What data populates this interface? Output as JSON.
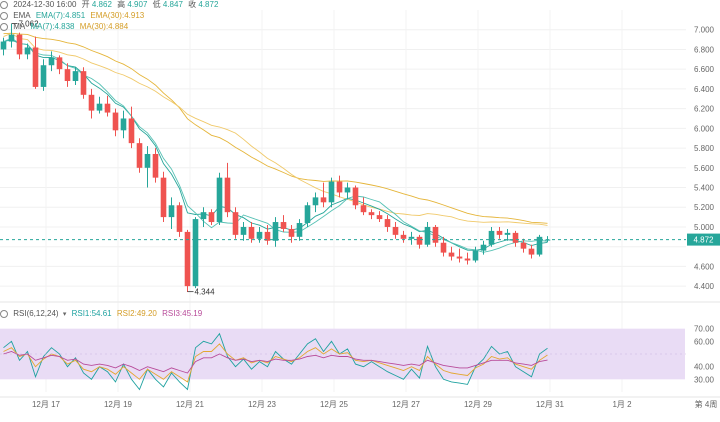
{
  "header": {
    "datetime": "2024-12-30 16:00",
    "open_label": "开",
    "open": "4.862",
    "high_label": "高",
    "high": "4.907",
    "low_label": "低",
    "low": "4.847",
    "close_label": "收",
    "close": "4.872"
  },
  "ema_legend": {
    "name": "EMA",
    "ema7": "EMA(7):4.851",
    "ema30": "EMA(30):4.913",
    "ema7_color": "#26a69a",
    "ema30_color": "#e5b53a"
  },
  "ma_legend": {
    "name": "MA",
    "ma7": "MA(7):4.838",
    "ma30": "MA(30):4.884",
    "ma7_color": "#26a69a",
    "ma30_color": "#e5b53a"
  },
  "rsi_legend": {
    "name": "RSI(6,12,24)",
    "rsi1": "RSI1:54.61",
    "rsi2": "RSI2:49.20",
    "rsi3": "RSI3:45.19",
    "rsi1_color": "#1fa2a0",
    "rsi2_color": "#e3a72f",
    "rsi3_color": "#b84b9a"
  },
  "annotations": {
    "high_mark": "7.062",
    "low_mark": "4.344",
    "last_price": "4.872"
  },
  "colors": {
    "up": "#26a69a",
    "down": "#ef5350",
    "rsi_band": "#e9dcf5"
  },
  "chart_data": [
    {
      "type": "candlestick",
      "price_axis": [
        "7.000",
        "6.800",
        "6.600",
        "6.400",
        "6.200",
        "6.000",
        "5.800",
        "5.600",
        "5.400",
        "5.200",
        "5.000",
        "4.800",
        "4.600",
        "4.400"
      ],
      "x_labels": [
        "12月 17",
        "12月 19",
        "12月 21",
        "12月 23",
        "12月 25",
        "12月 27",
        "12月 29",
        "12月 31",
        "1月 2",
        "第 4周"
      ],
      "ylim": [
        4.3,
        7.2
      ],
      "candles": [
        [
          6.8,
          6.92,
          6.74,
          6.88
        ],
        [
          6.88,
          7.06,
          6.82,
          6.95
        ],
        [
          6.95,
          6.97,
          6.7,
          6.75
        ],
        [
          6.75,
          6.86,
          6.7,
          6.82
        ],
        [
          6.82,
          6.93,
          6.4,
          6.42
        ],
        [
          6.42,
          6.7,
          6.38,
          6.64
        ],
        [
          6.64,
          6.78,
          6.58,
          6.72
        ],
        [
          6.72,
          6.74,
          6.55,
          6.6
        ],
        [
          6.6,
          6.66,
          6.42,
          6.48
        ],
        [
          6.48,
          6.62,
          6.44,
          6.58
        ],
        [
          6.58,
          6.62,
          6.3,
          6.34
        ],
        [
          6.34,
          6.4,
          6.1,
          6.18
        ],
        [
          6.18,
          6.32,
          6.15,
          6.25
        ],
        [
          6.25,
          6.33,
          6.12,
          6.16
        ],
        [
          6.16,
          6.2,
          5.92,
          5.98
        ],
        [
          5.98,
          6.18,
          5.9,
          6.1
        ],
        [
          6.1,
          6.22,
          5.8,
          5.85
        ],
        [
          5.85,
          5.9,
          5.55,
          5.6
        ],
        [
          5.6,
          5.82,
          5.4,
          5.74
        ],
        [
          5.74,
          5.8,
          5.45,
          5.5
        ],
        [
          5.5,
          5.56,
          5.05,
          5.1
        ],
        [
          5.1,
          5.3,
          4.98,
          5.22
        ],
        [
          5.22,
          5.25,
          4.9,
          4.95
        ],
        [
          4.95,
          4.97,
          4.34,
          4.4
        ],
        [
          4.4,
          5.1,
          4.38,
          5.08
        ],
        [
          5.08,
          5.2,
          5.0,
          5.15
        ],
        [
          5.15,
          5.18,
          5.02,
          5.05
        ],
        [
          5.05,
          5.55,
          5.02,
          5.5
        ],
        [
          5.5,
          5.65,
          5.1,
          5.15
        ],
        [
          5.15,
          5.2,
          4.88,
          4.92
        ],
        [
          4.92,
          5.05,
          4.86,
          5.0
        ],
        [
          5.0,
          5.05,
          4.84,
          4.88
        ],
        [
          4.88,
          5.0,
          4.84,
          4.95
        ],
        [
          4.95,
          5.02,
          4.82,
          4.86
        ],
        [
          4.86,
          5.1,
          4.8,
          5.05
        ],
        [
          5.05,
          5.12,
          4.95,
          4.98
        ],
        [
          4.98,
          5.02,
          4.84,
          4.9
        ],
        [
          4.9,
          5.08,
          4.86,
          5.04
        ],
        [
          5.04,
          5.25,
          5.0,
          5.22
        ],
        [
          5.22,
          5.35,
          5.15,
          5.3
        ],
        [
          5.3,
          5.45,
          5.2,
          5.25
        ],
        [
          5.25,
          5.5,
          5.2,
          5.46
        ],
        [
          5.46,
          5.52,
          5.3,
          5.35
        ],
        [
          5.35,
          5.45,
          5.28,
          5.4
        ],
        [
          5.4,
          5.42,
          5.18,
          5.22
        ],
        [
          5.22,
          5.3,
          5.12,
          5.15
        ],
        [
          5.15,
          5.18,
          5.08,
          5.12
        ],
        [
          5.12,
          5.16,
          5.05,
          5.08
        ],
        [
          5.08,
          5.12,
          4.95,
          5.0
        ],
        [
          5.0,
          5.05,
          4.88,
          4.92
        ],
        [
          4.92,
          4.96,
          4.84,
          4.88
        ],
        [
          4.88,
          4.95,
          4.82,
          4.9
        ],
        [
          4.9,
          4.92,
          4.78,
          4.82
        ],
        [
          4.82,
          5.05,
          4.8,
          5.0
        ],
        [
          5.0,
          5.02,
          4.8,
          4.84
        ],
        [
          4.84,
          4.9,
          4.7,
          4.74
        ],
        [
          4.74,
          4.8,
          4.66,
          4.7
        ],
        [
          4.7,
          4.78,
          4.64,
          4.68
        ],
        [
          4.68,
          4.74,
          4.62,
          4.66
        ],
        [
          4.66,
          4.8,
          4.64,
          4.76
        ],
        [
          4.76,
          4.86,
          4.72,
          4.82
        ],
        [
          4.82,
          5.0,
          4.8,
          4.96
        ],
        [
          4.96,
          5.0,
          4.88,
          4.92
        ],
        [
          4.92,
          4.98,
          4.86,
          4.94
        ],
        [
          4.94,
          4.96,
          4.8,
          4.84
        ],
        [
          4.84,
          4.88,
          4.74,
          4.78
        ],
        [
          4.78,
          4.82,
          4.68,
          4.72
        ],
        [
          4.72,
          4.92,
          4.7,
          4.9
        ],
        [
          4.862,
          4.907,
          4.847,
          4.872
        ]
      ]
    },
    {
      "type": "line",
      "title": "RSI(6,12,24)",
      "y_axis": [
        "70.00",
        "60.00",
        "40.00",
        "30.00"
      ],
      "ylim": [
        20,
        80
      ],
      "band": [
        30,
        70
      ],
      "series": [
        {
          "name": "RSI1",
          "values": [
            55,
            60,
            45,
            52,
            32,
            48,
            55,
            50,
            40,
            47,
            35,
            30,
            40,
            36,
            28,
            42,
            30,
            22,
            38,
            30,
            24,
            35,
            28,
            22,
            55,
            60,
            58,
            66,
            48,
            40,
            46,
            38,
            44,
            40,
            52,
            46,
            42,
            50,
            58,
            62,
            52,
            60,
            50,
            54,
            42,
            40,
            44,
            40,
            36,
            33,
            30,
            38,
            31,
            56,
            40,
            30,
            28,
            27,
            26,
            40,
            46,
            56,
            50,
            52,
            40,
            36,
            32,
            50,
            54.61
          ]
        },
        {
          "name": "RSI2",
          "values": [
            52,
            55,
            48,
            50,
            40,
            46,
            50,
            48,
            42,
            45,
            38,
            36,
            40,
            38,
            34,
            40,
            35,
            30,
            38,
            34,
            30,
            36,
            32,
            28,
            48,
            52,
            52,
            58,
            50,
            45,
            47,
            43,
            45,
            43,
            48,
            46,
            44,
            47,
            52,
            55,
            50,
            54,
            50,
            51,
            45,
            44,
            45,
            43,
            41,
            39,
            37,
            40,
            37,
            48,
            42,
            37,
            35,
            34,
            33,
            39,
            42,
            48,
            46,
            47,
            42,
            40,
            38,
            45,
            49.2
          ]
        },
        {
          "name": "RSI3",
          "values": [
            50,
            52,
            49,
            50,
            45,
            47,
            49,
            48,
            45,
            46,
            42,
            41,
            42,
            41,
            39,
            42,
            40,
            37,
            40,
            38,
            36,
            39,
            37,
            35,
            44,
            47,
            47,
            50,
            47,
            45,
            46,
            44,
            45,
            44,
            46,
            45,
            45,
            46,
            48,
            49,
            47,
            49,
            48,
            48,
            46,
            45,
            45,
            44,
            43,
            42,
            41,
            42,
            41,
            45,
            43,
            41,
            40,
            39,
            39,
            41,
            43,
            45,
            45,
            45,
            43,
            42,
            41,
            44,
            45.19
          ]
        }
      ]
    }
  ]
}
